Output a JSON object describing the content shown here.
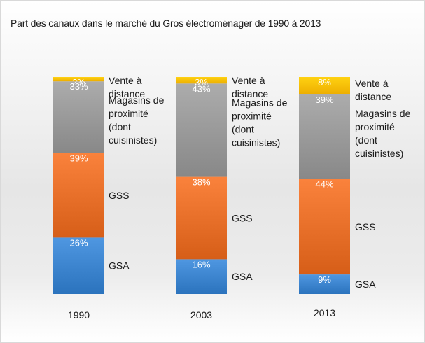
{
  "chart_data": {
    "type": "bar",
    "stacked": true,
    "percent": true,
    "title": "Part des canaux dans le marché du Gros électroménager de 1990 à 2013",
    "xlabel": "",
    "ylabel": "",
    "ylim": [
      0,
      100
    ],
    "grid": false,
    "legend": "inline-right-of-bars",
    "categories": [
      "1990",
      "2003",
      "2013"
    ],
    "series": [
      {
        "name": "GSA",
        "label_lines": [
          "GSA"
        ],
        "color": "#3d85cf",
        "values": [
          26,
          16,
          9
        ],
        "labels": [
          "26%",
          "16%",
          "9%"
        ]
      },
      {
        "name": "GSS",
        "label_lines": [
          "GSS"
        ],
        "color": "#e8702a",
        "values": [
          39,
          38,
          44
        ],
        "labels": [
          "39%",
          "38%",
          "44%"
        ]
      },
      {
        "name": "Magasins de proximité (dont cuisinistes)",
        "label_lines": [
          "Magasins de",
          "proximité",
          "(dont",
          "cuisinistes)"
        ],
        "color": "#9a9a9a",
        "values": [
          33,
          43,
          39
        ],
        "labels": [
          "33%",
          "43%",
          "39%"
        ]
      },
      {
        "name": "Vente à distance",
        "label_lines": [
          "Vente à",
          "distance"
        ],
        "color": "#ffc000",
        "values": [
          2,
          3,
          8
        ],
        "labels": [
          "2%",
          "3%",
          "8%"
        ]
      }
    ]
  }
}
